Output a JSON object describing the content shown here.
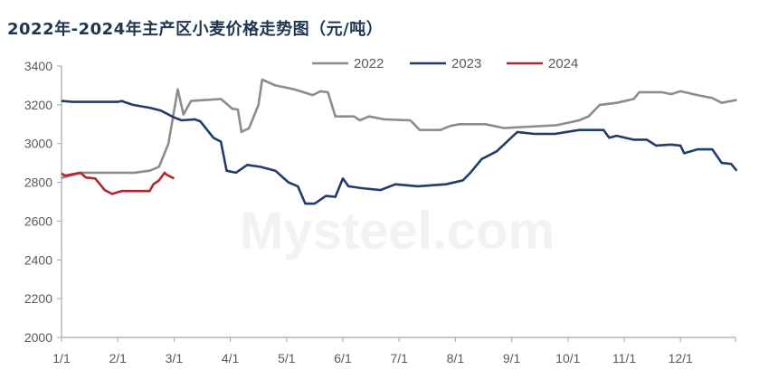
{
  "chart_data": {
    "type": "line",
    "title": "2022年-2024年主产区小麦价格走势图（元/吨）",
    "xlabel": "",
    "ylabel": "",
    "ylim": [
      2000,
      3400
    ],
    "yticks": [
      2000,
      2200,
      2400,
      2600,
      2800,
      3000,
      3200,
      3400
    ],
    "xticks": [
      "1/1",
      "2/1",
      "3/1",
      "4/1",
      "5/1",
      "6/1",
      "7/1",
      "8/1",
      "9/1",
      "10/1",
      "11/1",
      "12/1"
    ],
    "grid": false,
    "legend_position": "top-right",
    "watermark": "Mysteel.com",
    "series": [
      {
        "name": "2022",
        "color": "#8c8c8c",
        "points": [
          [
            "1/1",
            2823
          ],
          [
            "1/12",
            2850
          ],
          [
            "2/10",
            2850
          ],
          [
            "2/18",
            2860
          ],
          [
            "2/23",
            2880
          ],
          [
            "2/28",
            3000
          ],
          [
            "3/3",
            3280
          ],
          [
            "3/6",
            3150
          ],
          [
            "3/10",
            3220
          ],
          [
            "3/26",
            3230
          ],
          [
            "4/2",
            3180
          ],
          [
            "4/5",
            3175
          ],
          [
            "4/7",
            3060
          ],
          [
            "4/11",
            3080
          ],
          [
            "4/16",
            3200
          ],
          [
            "4/18",
            3330
          ],
          [
            "4/25",
            3300
          ],
          [
            "5/5",
            3280
          ],
          [
            "5/15",
            3250
          ],
          [
            "5/19",
            3270
          ],
          [
            "5/23",
            3265
          ],
          [
            "5/27",
            3140
          ],
          [
            "6/7",
            3140
          ],
          [
            "6/10",
            3120
          ],
          [
            "6/15",
            3140
          ],
          [
            "6/23",
            3125
          ],
          [
            "7/7",
            3120
          ],
          [
            "7/12",
            3070
          ],
          [
            "7/23",
            3070
          ],
          [
            "7/28",
            3090
          ],
          [
            "8/3",
            3100
          ],
          [
            "8/17",
            3100
          ],
          [
            "8/27",
            3080
          ],
          [
            "9/6",
            3085
          ],
          [
            "9/25",
            3095
          ],
          [
            "10/7",
            3120
          ],
          [
            "10/12",
            3140
          ],
          [
            "10/18",
            3200
          ],
          [
            "10/27",
            3210
          ],
          [
            "11/6",
            3230
          ],
          [
            "11/9",
            3265
          ],
          [
            "11/21",
            3265
          ],
          [
            "11/26",
            3255
          ],
          [
            "12/1",
            3270
          ],
          [
            "12/10",
            3250
          ],
          [
            "12/18",
            3235
          ],
          [
            "12/23",
            3210
          ],
          [
            "12/28",
            3220
          ],
          [
            "12/31",
            3225
          ]
        ]
      },
      {
        "name": "2023",
        "color": "#1f3d6b",
        "points": [
          [
            "1/1",
            3220
          ],
          [
            "1/7",
            3215
          ],
          [
            "1/31",
            3215
          ],
          [
            "2/3",
            3220
          ],
          [
            "2/9",
            3200
          ],
          [
            "2/18",
            3185
          ],
          [
            "2/24",
            3170
          ],
          [
            "3/1",
            3135
          ],
          [
            "3/5",
            3120
          ],
          [
            "3/12",
            3125
          ],
          [
            "3/15",
            3115
          ],
          [
            "3/22",
            3030
          ],
          [
            "3/26",
            3010
          ],
          [
            "3/29",
            2860
          ],
          [
            "4/4",
            2850
          ],
          [
            "4/10",
            2890
          ],
          [
            "4/17",
            2880
          ],
          [
            "4/25",
            2860
          ],
          [
            "5/2",
            2800
          ],
          [
            "5/7",
            2780
          ],
          [
            "5/11",
            2690
          ],
          [
            "5/16",
            2690
          ],
          [
            "5/22",
            2730
          ],
          [
            "5/27",
            2725
          ],
          [
            "5/31",
            2820
          ],
          [
            "6/4",
            2780
          ],
          [
            "6/11",
            2770
          ],
          [
            "6/21",
            2760
          ],
          [
            "6/29",
            2790
          ],
          [
            "7/11",
            2780
          ],
          [
            "7/26",
            2790
          ],
          [
            "8/5",
            2810
          ],
          [
            "8/9",
            2850
          ],
          [
            "8/15",
            2920
          ],
          [
            "8/23",
            2960
          ],
          [
            "9/4",
            3060
          ],
          [
            "9/13",
            3050
          ],
          [
            "9/24",
            3050
          ],
          [
            "10/7",
            3070
          ],
          [
            "10/20",
            3070
          ],
          [
            "10/23",
            3030
          ],
          [
            "10/27",
            3040
          ],
          [
            "11/6",
            3020
          ],
          [
            "11/13",
            3020
          ],
          [
            "11/18",
            2990
          ],
          [
            "11/26",
            2995
          ],
          [
            "12/1",
            2990
          ],
          [
            "12/3",
            2950
          ],
          [
            "12/10",
            2970
          ],
          [
            "12/18",
            2970
          ],
          [
            "12/23",
            2900
          ],
          [
            "12/28",
            2895
          ],
          [
            "12/31",
            2860
          ]
        ]
      },
      {
        "name": "2024",
        "color": "#b3262e",
        "points": [
          [
            "1/1",
            2845
          ],
          [
            "1/3",
            2835
          ],
          [
            "1/11",
            2850
          ],
          [
            "1/14",
            2825
          ],
          [
            "1/19",
            2820
          ],
          [
            "1/24",
            2760
          ],
          [
            "1/28",
            2740
          ],
          [
            "2/3",
            2755
          ],
          [
            "2/18",
            2755
          ],
          [
            "2/20",
            2790
          ],
          [
            "2/23",
            2810
          ],
          [
            "2/26",
            2850
          ],
          [
            "2/27",
            2840
          ],
          [
            "3/1",
            2820
          ]
        ]
      }
    ]
  }
}
